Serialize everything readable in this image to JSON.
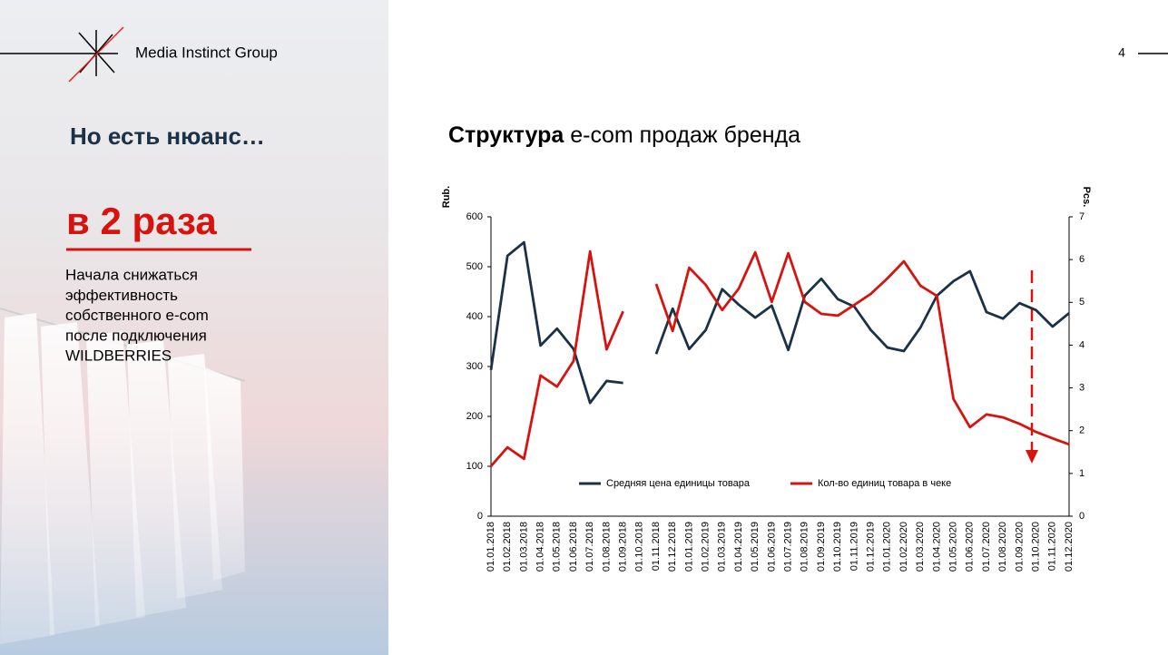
{
  "slide": {
    "brand": "Media Instinct Group",
    "page_number": "4",
    "heading": "Но есть нюанс…",
    "highlight": "в 2 раза",
    "paragraph": [
      "Начала снижаться",
      "эффективность",
      "собственного e-com",
      "после подключения",
      "WILDBERRIES"
    ]
  },
  "chart_data": {
    "type": "line",
    "title_bold": "Структура",
    "title": "e-com продаж бренда",
    "y_label": "Rub.",
    "y2_label": "Pcs.",
    "categories": [
      "01.01.2018",
      "01.02.2018",
      "01.03.2018",
      "01.04.2018",
      "01.05.2018",
      "01.06.2018",
      "01.07.2018",
      "01.08.2018",
      "01.09.2018",
      "01.10.2018",
      "01.11.2018",
      "01.12.2018",
      "01.01.2019",
      "01.02.2019",
      "01.03.2019",
      "01.04.2019",
      "01.05.2019",
      "01.06.2019",
      "01.07.2019",
      "01.08.2019",
      "01.09.2019",
      "01.10.2019",
      "01.11.2019",
      "01.12.2019",
      "01.01.2020",
      "01.02.2020",
      "01.03.2020",
      "01.04.2020",
      "01.05.2020",
      "01.06.2020",
      "01.07.2020",
      "01.08.2020",
      "01.09.2020",
      "01.10.2020",
      "01.11.2020",
      "01.12.2020"
    ],
    "series": [
      {
        "name": "Средняя цена единицы товара",
        "color": "#1b3147",
        "axis": "y",
        "values": [
          293,
          522,
          549,
          342,
          376,
          335,
          227,
          271,
          267,
          null,
          325,
          416,
          335,
          373,
          455,
          424,
          398,
          422,
          333,
          442,
          476,
          435,
          420,
          373,
          338,
          331,
          378,
          442,
          471,
          491,
          409,
          396,
          427,
          413,
          380,
          407
        ]
      },
      {
        "name": "Кол-во единиц товара в чеке",
        "color": "#d7130f",
        "axis": "y2",
        "values": [
          1.17,
          1.61,
          1.34,
          3.29,
          3.03,
          3.63,
          6.19,
          3.9,
          4.79,
          null,
          5.43,
          4.33,
          5.81,
          5.41,
          4.82,
          5.32,
          6.17,
          5.01,
          6.15,
          5.01,
          4.73,
          4.69,
          4.94,
          5.2,
          5.56,
          5.96,
          5.39,
          5.15,
          2.74,
          2.08,
          2.38,
          2.31,
          2.16,
          1.97,
          1.82,
          1.68
        ]
      }
    ],
    "ylim": [
      0,
      600
    ],
    "yticks": [
      0,
      100,
      200,
      300,
      400,
      500,
      600
    ],
    "y2lim": [
      0,
      7
    ],
    "y2ticks": [
      0,
      1,
      2,
      3,
      4,
      5,
      6,
      7
    ],
    "grid": false,
    "legend": "bottom"
  }
}
